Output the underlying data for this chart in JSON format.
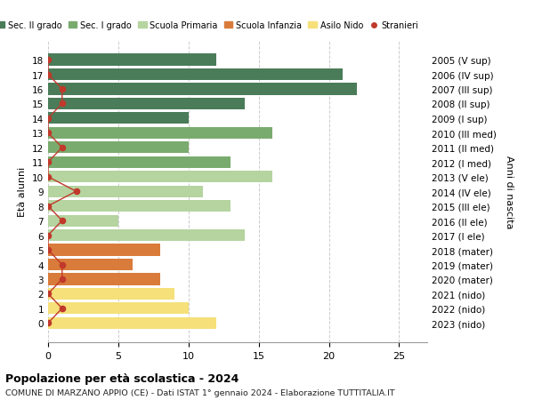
{
  "ages": [
    18,
    17,
    16,
    15,
    14,
    13,
    12,
    11,
    10,
    9,
    8,
    7,
    6,
    5,
    4,
    3,
    2,
    1,
    0
  ],
  "right_labels": [
    "2005 (V sup)",
    "2006 (IV sup)",
    "2007 (III sup)",
    "2008 (II sup)",
    "2009 (I sup)",
    "2010 (III med)",
    "2011 (II med)",
    "2012 (I med)",
    "2013 (V ele)",
    "2014 (IV ele)",
    "2015 (III ele)",
    "2016 (II ele)",
    "2017 (I ele)",
    "2018 (mater)",
    "2019 (mater)",
    "2020 (mater)",
    "2021 (nido)",
    "2022 (nido)",
    "2023 (nido)"
  ],
  "bar_values": [
    12,
    21,
    22,
    14,
    10,
    16,
    10,
    13,
    16,
    11,
    13,
    5,
    14,
    8,
    6,
    8,
    9,
    10,
    12
  ],
  "bar_colors": [
    "#4a7c59",
    "#4a7c59",
    "#4a7c59",
    "#4a7c59",
    "#4a7c59",
    "#7aab6e",
    "#7aab6e",
    "#7aab6e",
    "#b5d4a0",
    "#b5d4a0",
    "#b5d4a0",
    "#b5d4a0",
    "#b5d4a0",
    "#d97b3a",
    "#d97b3a",
    "#d97b3a",
    "#f5e07a",
    "#f5e07a",
    "#f5e07a"
  ],
  "stranieri_values": [
    0,
    0,
    1,
    1,
    0,
    0,
    1,
    0,
    0,
    2,
    0,
    1,
    0,
    0,
    1,
    1,
    0,
    1,
    0
  ],
  "legend_labels": [
    "Sec. II grado",
    "Sec. I grado",
    "Scuola Primaria",
    "Scuola Infanzia",
    "Asilo Nido",
    "Stranieri"
  ],
  "legend_colors": [
    "#4a7c59",
    "#7aab6e",
    "#b5d4a0",
    "#d97b3a",
    "#f5e07a",
    "#c0392b"
  ],
  "title": "Popolazione per età scolastica - 2024",
  "subtitle": "COMUNE DI MARZANO APPIO (CE) - Dati ISTAT 1° gennaio 2024 - Elaborazione TUTTITALIA.IT",
  "ylabel_left": "Età alunni",
  "ylabel_right": "Anni di nascita",
  "xlim": [
    0,
    27
  ],
  "background_color": "#ffffff",
  "grid_color": "#cccccc"
}
